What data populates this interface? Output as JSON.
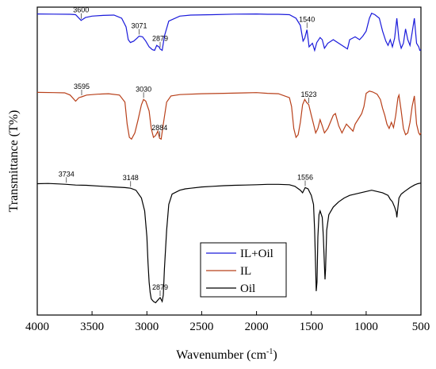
{
  "chart_data": {
    "type": "line",
    "xlabel": "Wavenumber (cm",
    "xlabel_sup": "-1",
    "xlabel_end": ")",
    "ylabel": "Transmittance (T%)",
    "xlim": [
      4000,
      500
    ],
    "x_ticks": [
      "4000",
      "3500",
      "3000",
      "2500",
      "2000",
      "1500",
      "1000",
      "500"
    ],
    "y_ticks": [],
    "legend_placement": "lower-right",
    "series": [
      {
        "name": "IL+Oil",
        "color": "#1a1adb",
        "points": [
          [
            4000,
            0.96
          ],
          [
            3850,
            0.958
          ],
          [
            3700,
            0.955
          ],
          [
            3650,
            0.95
          ],
          [
            3600,
            0.87
          ],
          [
            3560,
            0.91
          ],
          [
            3500,
            0.93
          ],
          [
            3400,
            0.94
          ],
          [
            3300,
            0.945
          ],
          [
            3230,
            0.9
          ],
          [
            3190,
            0.78
          ],
          [
            3170,
            0.6
          ],
          [
            3150,
            0.56
          ],
          [
            3120,
            0.58
          ],
          [
            3090,
            0.62
          ],
          [
            3071,
            0.65
          ],
          [
            3040,
            0.64
          ],
          [
            3010,
            0.58
          ],
          [
            2980,
            0.5
          ],
          [
            2950,
            0.46
          ],
          [
            2930,
            0.45
          ],
          [
            2910,
            0.52
          ],
          [
            2890,
            0.5
          ],
          [
            2879,
            0.47
          ],
          [
            2860,
            0.45
          ],
          [
            2840,
            0.65
          ],
          [
            2800,
            0.86
          ],
          [
            2700,
            0.93
          ],
          [
            2600,
            0.945
          ],
          [
            2400,
            0.95
          ],
          [
            2200,
            0.958
          ],
          [
            2000,
            0.96
          ],
          [
            1900,
            0.955
          ],
          [
            1800,
            0.955
          ],
          [
            1700,
            0.95
          ],
          [
            1640,
            0.9
          ],
          [
            1600,
            0.8
          ],
          [
            1575,
            0.58
          ],
          [
            1560,
            0.62
          ],
          [
            1540,
            0.74
          ],
          [
            1520,
            0.5
          ],
          [
            1490,
            0.55
          ],
          [
            1470,
            0.45
          ],
          [
            1450,
            0.56
          ],
          [
            1420,
            0.63
          ],
          [
            1400,
            0.6
          ],
          [
            1380,
            0.48
          ],
          [
            1350,
            0.55
          ],
          [
            1300,
            0.6
          ],
          [
            1250,
            0.55
          ],
          [
            1200,
            0.5
          ],
          [
            1170,
            0.47
          ],
          [
            1150,
            0.6
          ],
          [
            1100,
            0.64
          ],
          [
            1060,
            0.6
          ],
          [
            1030,
            0.65
          ],
          [
            1000,
            0.72
          ],
          [
            970,
            0.9
          ],
          [
            950,
            0.97
          ],
          [
            920,
            0.95
          ],
          [
            880,
            0.9
          ],
          [
            850,
            0.72
          ],
          [
            820,
            0.58
          ],
          [
            800,
            0.52
          ],
          [
            780,
            0.6
          ],
          [
            760,
            0.5
          ],
          [
            740,
            0.62
          ],
          [
            720,
            0.9
          ],
          [
            700,
            0.6
          ],
          [
            680,
            0.48
          ],
          [
            660,
            0.55
          ],
          [
            640,
            0.75
          ],
          [
            620,
            0.6
          ],
          [
            600,
            0.52
          ],
          [
            580,
            0.7
          ],
          [
            560,
            0.9
          ],
          [
            540,
            0.55
          ],
          [
            520,
            0.5
          ],
          [
            510,
            0.45
          ],
          [
            500,
            0.46
          ]
        ]
      },
      {
        "name": "IL",
        "color": "#b8401a",
        "points": [
          [
            4000,
            0.96
          ],
          [
            3850,
            0.958
          ],
          [
            3750,
            0.955
          ],
          [
            3700,
            0.93
          ],
          [
            3650,
            0.86
          ],
          [
            3620,
            0.9
          ],
          [
            3595,
            0.91
          ],
          [
            3550,
            0.93
          ],
          [
            3450,
            0.94
          ],
          [
            3350,
            0.945
          ],
          [
            3250,
            0.93
          ],
          [
            3200,
            0.85
          ],
          [
            3180,
            0.6
          ],
          [
            3160,
            0.45
          ],
          [
            3140,
            0.43
          ],
          [
            3110,
            0.5
          ],
          [
            3080,
            0.65
          ],
          [
            3050,
            0.82
          ],
          [
            3030,
            0.88
          ],
          [
            3010,
            0.86
          ],
          [
            2980,
            0.75
          ],
          [
            2960,
            0.55
          ],
          [
            2940,
            0.45
          ],
          [
            2920,
            0.47
          ],
          [
            2900,
            0.52
          ],
          [
            2884,
            0.44
          ],
          [
            2870,
            0.43
          ],
          [
            2850,
            0.6
          ],
          [
            2820,
            0.85
          ],
          [
            2780,
            0.92
          ],
          [
            2700,
            0.935
          ],
          [
            2500,
            0.945
          ],
          [
            2300,
            0.95
          ],
          [
            2100,
            0.955
          ],
          [
            2000,
            0.958
          ],
          [
            1900,
            0.95
          ],
          [
            1800,
            0.945
          ],
          [
            1700,
            0.9
          ],
          [
            1680,
            0.8
          ],
          [
            1660,
            0.55
          ],
          [
            1640,
            0.45
          ],
          [
            1620,
            0.48
          ],
          [
            1600,
            0.62
          ],
          [
            1580,
            0.82
          ],
          [
            1560,
            0.88
          ],
          [
            1545,
            0.85
          ],
          [
            1523,
            0.82
          ],
          [
            1500,
            0.7
          ],
          [
            1480,
            0.6
          ],
          [
            1460,
            0.5
          ],
          [
            1440,
            0.55
          ],
          [
            1420,
            0.65
          ],
          [
            1400,
            0.58
          ],
          [
            1380,
            0.5
          ],
          [
            1350,
            0.55
          ],
          [
            1300,
            0.7
          ],
          [
            1280,
            0.72
          ],
          [
            1250,
            0.58
          ],
          [
            1220,
            0.5
          ],
          [
            1200,
            0.55
          ],
          [
            1180,
            0.6
          ],
          [
            1150,
            0.56
          ],
          [
            1120,
            0.52
          ],
          [
            1100,
            0.6
          ],
          [
            1060,
            0.68
          ],
          [
            1040,
            0.72
          ],
          [
            1020,
            0.8
          ],
          [
            1000,
            0.95
          ],
          [
            970,
            0.975
          ],
          [
            940,
            0.965
          ],
          [
            900,
            0.94
          ],
          [
            870,
            0.88
          ],
          [
            850,
            0.78
          ],
          [
            830,
            0.7
          ],
          [
            810,
            0.6
          ],
          [
            790,
            0.55
          ],
          [
            770,
            0.62
          ],
          [
            750,
            0.56
          ],
          [
            730,
            0.7
          ],
          [
            710,
            0.9
          ],
          [
            700,
            0.93
          ],
          [
            680,
            0.75
          ],
          [
            660,
            0.55
          ],
          [
            640,
            0.48
          ],
          [
            620,
            0.5
          ],
          [
            600,
            0.62
          ],
          [
            580,
            0.8
          ],
          [
            560,
            0.92
          ],
          [
            540,
            0.6
          ],
          [
            520,
            0.5
          ],
          [
            510,
            0.48
          ],
          [
            500,
            0.5
          ]
        ]
      },
      {
        "name": "Oil",
        "color": "#000000",
        "points": [
          [
            4000,
            0.96
          ],
          [
            3900,
            0.962
          ],
          [
            3800,
            0.958
          ],
          [
            3734,
            0.955
          ],
          [
            3650,
            0.95
          ],
          [
            3550,
            0.948
          ],
          [
            3400,
            0.94
          ],
          [
            3300,
            0.935
          ],
          [
            3200,
            0.93
          ],
          [
            3148,
            0.925
          ],
          [
            3100,
            0.91
          ],
          [
            3050,
            0.85
          ],
          [
            3020,
            0.75
          ],
          [
            3000,
            0.55
          ],
          [
            2990,
            0.35
          ],
          [
            2980,
            0.2
          ],
          [
            2970,
            0.12
          ],
          [
            2960,
            0.07
          ],
          [
            2940,
            0.05
          ],
          [
            2920,
            0.04
          ],
          [
            2900,
            0.06
          ],
          [
            2879,
            0.08
          ],
          [
            2860,
            0.05
          ],
          [
            2850,
            0.1
          ],
          [
            2840,
            0.3
          ],
          [
            2820,
            0.6
          ],
          [
            2800,
            0.8
          ],
          [
            2770,
            0.88
          ],
          [
            2700,
            0.91
          ],
          [
            2650,
            0.92
          ],
          [
            2600,
            0.925
          ],
          [
            2500,
            0.935
          ],
          [
            2400,
            0.94
          ],
          [
            2300,
            0.945
          ],
          [
            2200,
            0.948
          ],
          [
            2100,
            0.95
          ],
          [
            2000,
            0.952
          ],
          [
            1900,
            0.955
          ],
          [
            1800,
            0.955
          ],
          [
            1700,
            0.952
          ],
          [
            1650,
            0.94
          ],
          [
            1600,
            0.91
          ],
          [
            1580,
            0.89
          ],
          [
            1556,
            0.93
          ],
          [
            1530,
            0.92
          ],
          [
            1500,
            0.87
          ],
          [
            1480,
            0.8
          ],
          [
            1470,
            0.6
          ],
          [
            1460,
            0.3
          ],
          [
            1455,
            0.13
          ],
          [
            1448,
            0.2
          ],
          [
            1440,
            0.55
          ],
          [
            1430,
            0.72
          ],
          [
            1420,
            0.75
          ],
          [
            1400,
            0.7
          ],
          [
            1390,
            0.55
          ],
          [
            1380,
            0.32
          ],
          [
            1375,
            0.22
          ],
          [
            1370,
            0.3
          ],
          [
            1360,
            0.6
          ],
          [
            1340,
            0.72
          ],
          [
            1300,
            0.78
          ],
          [
            1250,
            0.82
          ],
          [
            1200,
            0.85
          ],
          [
            1150,
            0.87
          ],
          [
            1100,
            0.88
          ],
          [
            1050,
            0.89
          ],
          [
            1000,
            0.9
          ],
          [
            950,
            0.91
          ],
          [
            900,
            0.9
          ],
          [
            850,
            0.89
          ],
          [
            800,
            0.87
          ],
          [
            780,
            0.84
          ],
          [
            760,
            0.82
          ],
          [
            740,
            0.78
          ],
          [
            725,
            0.74
          ],
          [
            720,
            0.7
          ],
          [
            710,
            0.78
          ],
          [
            700,
            0.85
          ],
          [
            680,
            0.88
          ],
          [
            650,
            0.9
          ],
          [
            600,
            0.93
          ],
          [
            560,
            0.95
          ],
          [
            530,
            0.96
          ],
          [
            500,
            0.965
          ]
        ]
      }
    ],
    "annotations": [
      {
        "text": "3600",
        "series": 0,
        "x": 3600
      },
      {
        "text": "3071",
        "series": 0,
        "x": 3071
      },
      {
        "text": "2879",
        "series": 0,
        "x": 2879
      },
      {
        "text": "1540",
        "series": 0,
        "x": 1540
      },
      {
        "text": "3595",
        "series": 1,
        "x": 3595
      },
      {
        "text": "3030",
        "series": 1,
        "x": 3030
      },
      {
        "text": "2884",
        "series": 1,
        "x": 2884
      },
      {
        "text": "1523",
        "series": 1,
        "x": 1523
      },
      {
        "text": "3734",
        "series": 2,
        "x": 3734
      },
      {
        "text": "3148",
        "series": 2,
        "x": 3148
      },
      {
        "text": "2879",
        "series": 2,
        "x": 2879
      },
      {
        "text": "1556",
        "series": 2,
        "x": 1556
      }
    ]
  }
}
